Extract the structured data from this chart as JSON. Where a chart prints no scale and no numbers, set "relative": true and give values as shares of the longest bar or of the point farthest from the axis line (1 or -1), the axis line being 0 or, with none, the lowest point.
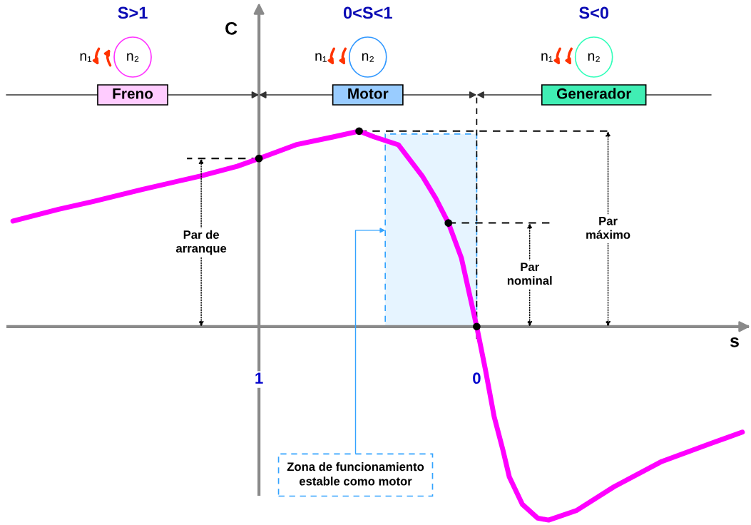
{
  "chart_data": {
    "type": "line",
    "xlabel": "s",
    "relative": true,
    "xlim": [
      2.16,
      -1.25
    ],
    "xticks": [
      1,
      0
    ],
    "series": [
      {
        "color": "#ff00ff",
        "x": [
          2.13,
          1.92,
          1.76,
          1.54,
          1.27,
          1.1,
          1,
          0.83,
          0.66,
          0.54,
          0.47,
          0.36,
          0.25,
          0.19,
          0.13,
          0.07,
          0.03,
          0,
          -0.04,
          -0.08,
          -0.12,
          -0.15,
          -0.21,
          -0.28,
          -0.33,
          -0.46,
          -0.63,
          -0.85,
          -1.07,
          -1.22
        ],
        "values": [
          0.54,
          0.6,
          0.64,
          0.7,
          0.77,
          0.82,
          0.86,
          0.93,
          0.97,
          1,
          0.97,
          0.93,
          0.77,
          0.66,
          0.53,
          0.35,
          0.15,
          0,
          -0.22,
          -0.46,
          -0.63,
          -0.77,
          -0.91,
          -0.98,
          -0.99,
          -0.94,
          -0.82,
          -0.69,
          -0.6,
          -0.54
        ]
      },
      {
        "type": "scatter",
        "color": "#000000",
        "x": [
          1,
          0.54,
          0.13,
          0
        ],
        "values": [
          0.86,
          1,
          0.53,
          0
        ]
      }
    ],
    "annotations": [
      "S>1",
      "n₁",
      "n₂",
      "Freno",
      "0<S<1",
      "n₁",
      "n₂",
      "Motor",
      "S<0",
      "n₁",
      "n₂",
      "Generador",
      "Par de\narranque",
      "Par\nmáximo",
      "Par\nnominal"
    ],
    "bands": [
      {
        "axis": "x",
        "from": 0.42,
        "to": 0,
        "label": "Zona de funcionamiento\nestable como motor",
        "color": "#33a3ff"
      }
    ],
    "ref_lines": [
      {
        "axis": "x",
        "value": 1,
        "label": "C",
        "color": "#8a8a8a"
      },
      {
        "axis": "x",
        "value": 0,
        "color": "#000000",
        "line_style": "dashed"
      },
      {
        "axis": "y",
        "value": 0.86,
        "color": "#000000",
        "line_style": "dashed"
      },
      {
        "axis": "y",
        "value": 1,
        "color": "#000000",
        "line_style": "dashed"
      },
      {
        "axis": "y",
        "value": 0.53,
        "color": "#000000",
        "line_style": "dashed"
      }
    ]
  }
}
